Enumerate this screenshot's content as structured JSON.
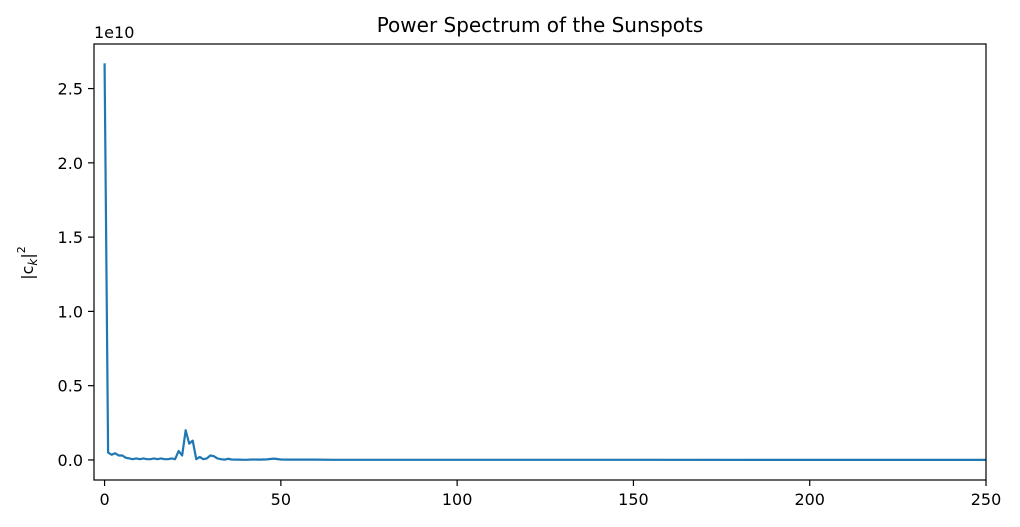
{
  "chart_data": {
    "type": "line",
    "title": "Power Spectrum of the Sunspots",
    "xlabel": "",
    "ylabel_base": "|c",
    "ylabel_sub": "k",
    "ylabel_close": "|",
    "ylabel_sup": "2",
    "y_offset_label": "1e10",
    "xlim": [
      -3,
      250
    ],
    "ylim": [
      -0.135,
      2.8
    ],
    "y_unit": "x 1e10",
    "x_ticks": [
      0,
      50,
      100,
      150,
      200,
      250
    ],
    "x_tick_labels": [
      "0",
      "50",
      "100",
      "150",
      "200",
      "250"
    ],
    "y_ticks": [
      0.0,
      0.5,
      1.0,
      1.5,
      2.0,
      2.5
    ],
    "y_tick_labels": [
      "0.0",
      "0.5",
      "1.0",
      "1.5",
      "2.0",
      "2.5"
    ],
    "grid": false,
    "line_color": "#1f77b4",
    "series": [
      {
        "x": [
          0,
          1,
          2,
          3,
          4,
          5,
          6,
          7,
          8,
          9,
          10,
          11,
          12,
          13,
          14,
          15,
          16,
          17,
          18,
          19,
          20,
          21,
          22,
          23,
          24,
          25,
          26,
          27,
          28,
          29,
          30,
          31,
          32,
          33,
          34,
          35,
          36,
          38,
          40,
          42,
          44,
          46,
          48,
          50,
          52,
          55,
          60,
          65,
          70,
          80,
          90,
          100,
          120,
          150,
          200,
          250
        ],
        "y": [
          2.67,
          0.05,
          0.035,
          0.045,
          0.03,
          0.03,
          0.015,
          0.01,
          0.005,
          0.01,
          0.005,
          0.01,
          0.005,
          0.005,
          0.01,
          0.005,
          0.01,
          0.005,
          0.005,
          0.01,
          0.005,
          0.06,
          0.03,
          0.2,
          0.11,
          0.13,
          0.005,
          0.02,
          0.005,
          0.01,
          0.03,
          0.025,
          0.01,
          0.005,
          0.002,
          0.008,
          0.003,
          0.002,
          0.001,
          0.003,
          0.002,
          0.004,
          0.009,
          0.003,
          0.002,
          0.002,
          0.002,
          0.001,
          0.001,
          0.001,
          0.001,
          0.001,
          0.001,
          0.001,
          0.0005,
          0.0005
        ]
      }
    ]
  }
}
